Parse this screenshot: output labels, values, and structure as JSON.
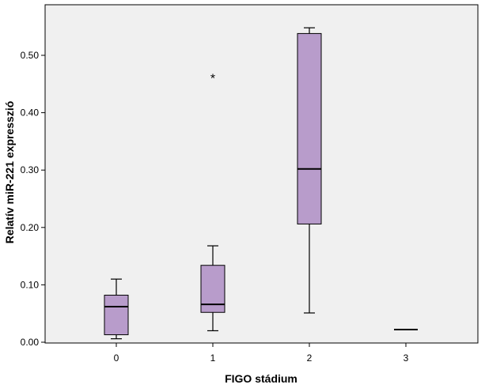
{
  "chart_data": {
    "type": "boxplot",
    "xlabel": "FIGO stádium",
    "ylabel": "Relatív miR-221 expresszió",
    "categories": [
      "0",
      "1",
      "2",
      "3"
    ],
    "ylim": [
      0,
      0.56
    ],
    "y_ticks": [
      "0.00",
      "0.10",
      "0.20",
      "0.30",
      "0.40",
      "0.50"
    ],
    "y_tick_values": [
      0,
      0.1,
      0.2,
      0.3,
      0.4,
      0.5
    ],
    "boxes": [
      {
        "category": "0",
        "whisker_low": 0.006,
        "q1": 0.013,
        "median": 0.062,
        "q3": 0.082,
        "whisker_high": 0.11,
        "outliers": []
      },
      {
        "category": "1",
        "whisker_low": 0.02,
        "q1": 0.052,
        "median": 0.066,
        "q3": 0.134,
        "whisker_high": 0.168,
        "outliers": [
          0.462
        ]
      },
      {
        "category": "2",
        "whisker_low": 0.051,
        "q1": 0.206,
        "median": 0.302,
        "q3": 0.538,
        "whisker_high": 0.548,
        "outliers": []
      },
      {
        "category": "3",
        "whisker_low": 0.022,
        "q1": 0.022,
        "median": 0.022,
        "q3": 0.022,
        "whisker_high": 0.022,
        "outliers": []
      }
    ],
    "outlier_marker": "*",
    "colors": {
      "box_fill": "#b89ccb",
      "plot_background": "#f0f0f0",
      "line": "#000000"
    },
    "grid": false,
    "legend": "none"
  }
}
